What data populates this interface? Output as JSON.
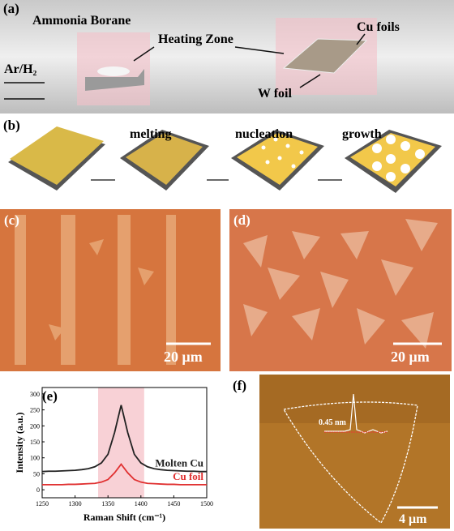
{
  "panels": {
    "a": {
      "label": "(a)",
      "ammonia": "Ammonia Borane",
      "heating": "Heating Zone",
      "cufoils": "Cu foils",
      "gas": "Ar/H₂",
      "wfoil": "W foil"
    },
    "b": {
      "label": "(b)",
      "step1": "melting",
      "step2": "nucleation",
      "step3": "growth"
    },
    "c": {
      "label": "(c)",
      "scale": "20 μm"
    },
    "d": {
      "label": "(d)",
      "scale": "20 μm"
    },
    "e": {
      "label": "(e)"
    },
    "f": {
      "label": "(f)",
      "height": "0.45 nm",
      "scale": "4 μm"
    }
  },
  "chart_data": {
    "type": "line",
    "x_label": "Raman Shift (cm⁻¹)",
    "y_label": "Intensity (a.u.)",
    "x": [
      1250,
      1260,
      1270,
      1280,
      1290,
      1300,
      1310,
      1320,
      1330,
      1340,
      1350,
      1360,
      1370,
      1380,
      1390,
      1400,
      1410,
      1420,
      1430,
      1440,
      1450,
      1460,
      1470,
      1480,
      1490,
      1500
    ],
    "series": [
      {
        "name": "Molten Cu",
        "color": "#222222",
        "values": [
          57,
          58,
          58,
          59,
          60,
          61,
          63,
          66,
          72,
          84,
          111,
          179,
          265,
          179,
          111,
          84,
          72,
          66,
          63,
          61,
          60,
          59,
          58,
          58,
          57,
          57
        ]
      },
      {
        "name": "Cu foil",
        "color": "#e03030",
        "values": [
          16,
          16,
          16,
          16,
          17,
          17,
          18,
          19,
          20,
          24,
          32,
          53,
          80,
          53,
          32,
          24,
          20,
          19,
          18,
          17,
          17,
          16,
          16,
          16,
          16,
          16
        ]
      }
    ],
    "highlight_range": [
      1335,
      1405
    ],
    "xlim": [
      1250,
      1500
    ],
    "xticks": [
      1250,
      1300,
      1350,
      1400,
      1450,
      1500
    ],
    "ylim": [
      -25,
      320
    ],
    "yticks": [
      0,
      50,
      100,
      150,
      200,
      250,
      300
    ]
  }
}
